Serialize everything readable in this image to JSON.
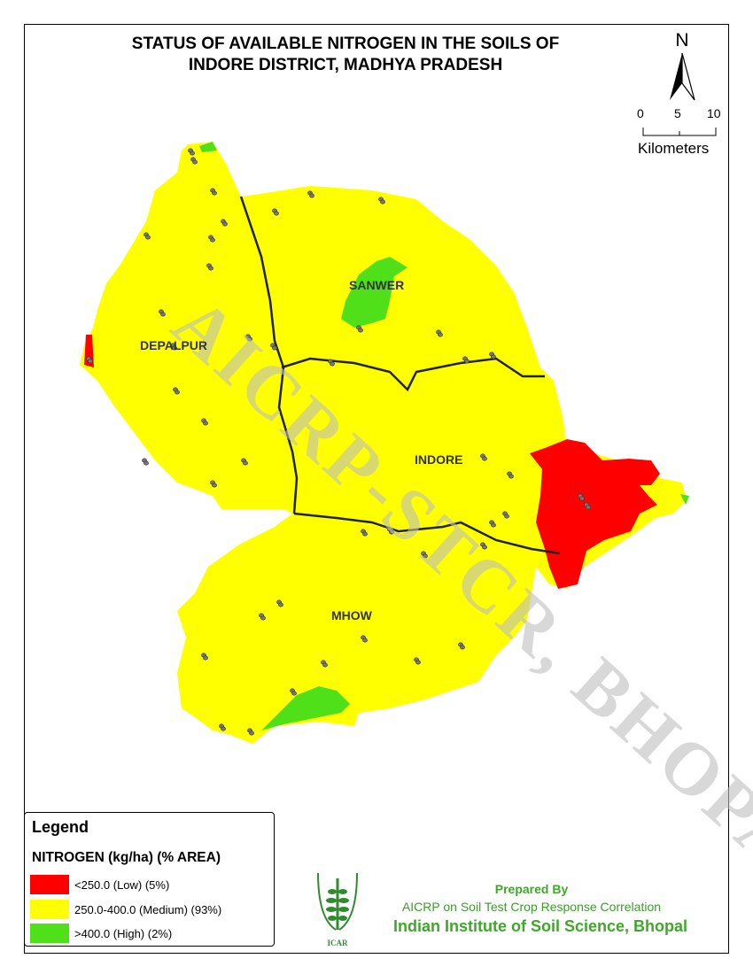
{
  "title": [
    "STATUS OF AVAILABLE NITROGEN IN THE SOILS OF",
    "INDORE DISTRICT, MADHYA PRADESH"
  ],
  "north_label": "N",
  "scale": {
    "ticks": [
      "0",
      "5",
      "10"
    ],
    "unit": "Kilometers"
  },
  "watermark": "AICRP-STCR, BHOPAL",
  "regions": [
    "DEPALPUR",
    "SANWER",
    "INDORE",
    "MHOW"
  ],
  "legend": {
    "heading": "Legend",
    "subtitle": "NITROGEN (kg/ha) (% AREA)",
    "items": [
      {
        "label": "<250.0 (Low) (5%)",
        "color": "#ff0000"
      },
      {
        "label": "250.0-400.0 (Medium) (93%)",
        "color": "#ffff00"
      },
      {
        "label": ">400.0 (High) (2%)",
        "color": "#4fe01a"
      }
    ]
  },
  "credits": {
    "line1": "Prepared By",
    "line2": "AICRP on Soil Test Crop Response Correlation",
    "line3": "Indian Institute of Soil Science, Bhopal",
    "logo_text": "ICAR"
  }
}
